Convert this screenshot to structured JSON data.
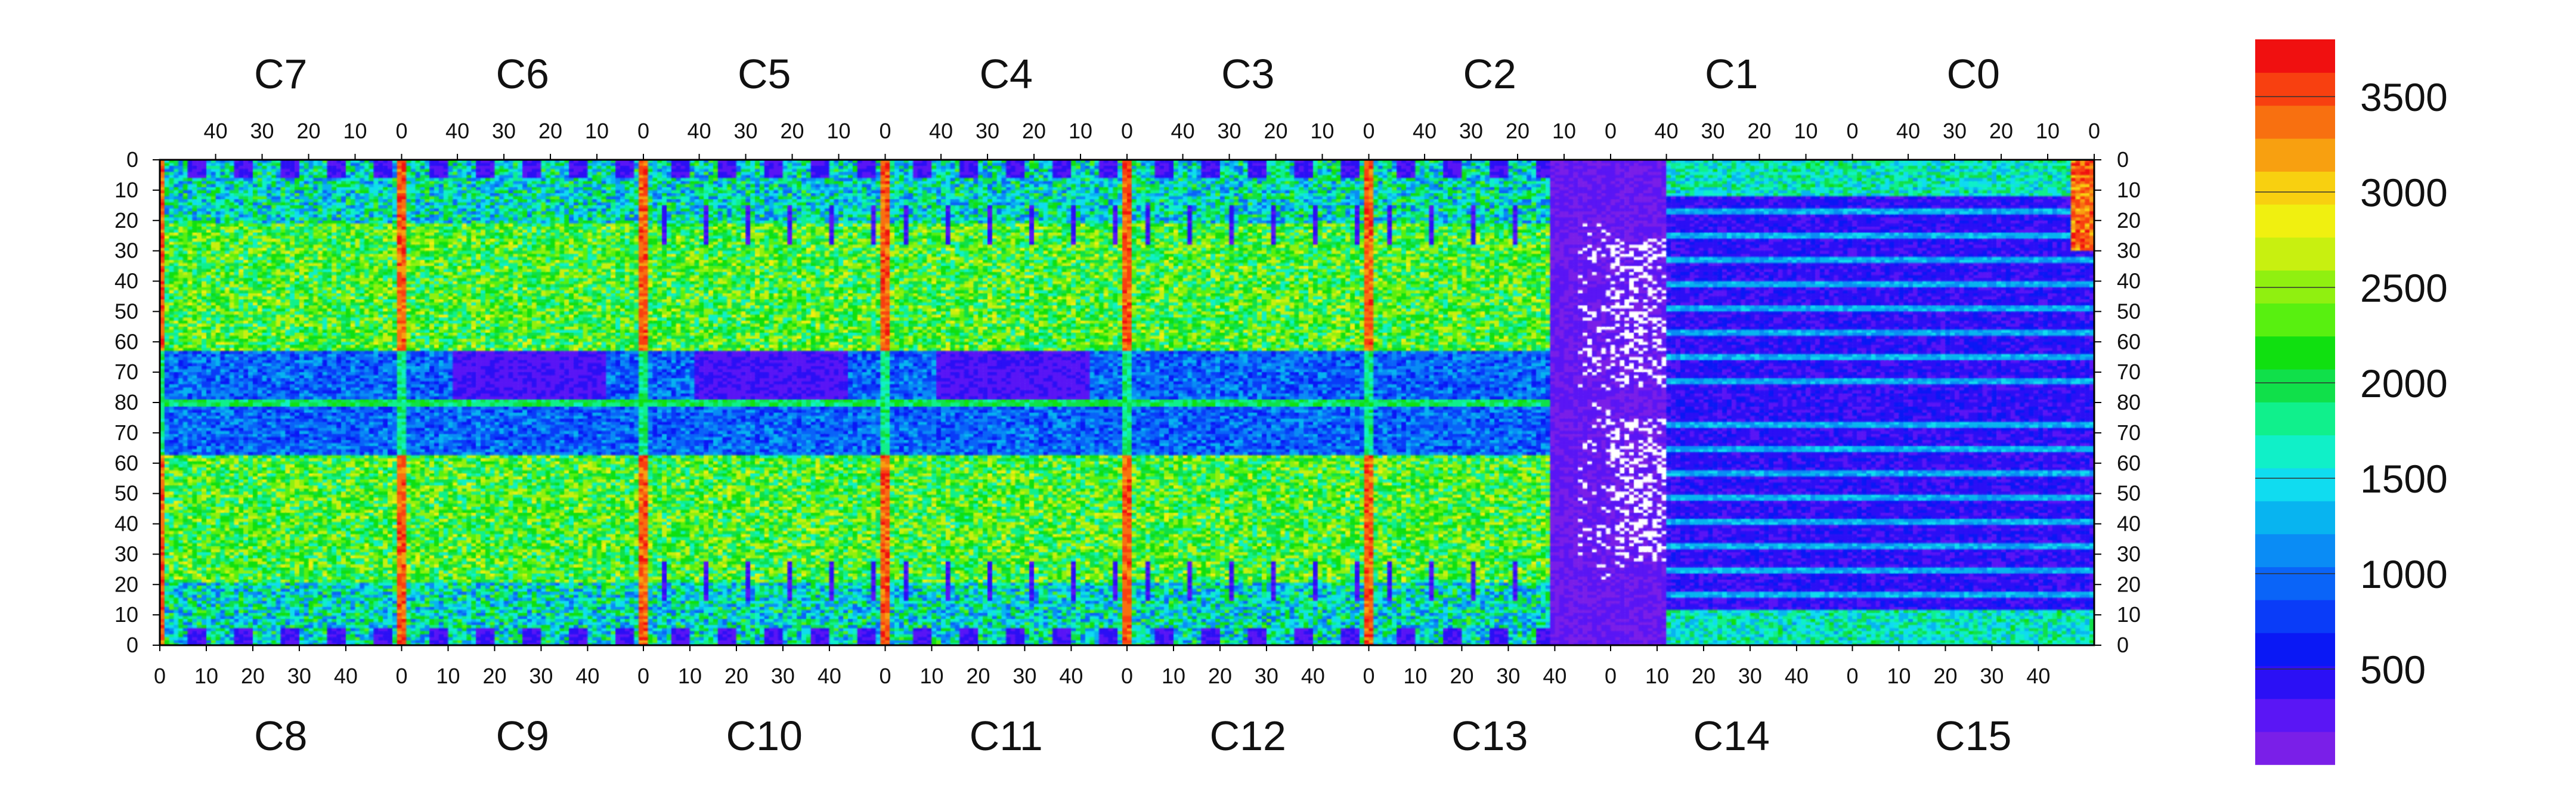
{
  "chart_data": {
    "type": "heatmap",
    "title": "",
    "xlabel": "",
    "ylabel": "",
    "top_chips": [
      "C7",
      "C6",
      "C5",
      "C4",
      "C3",
      "C2",
      "C1",
      "C0"
    ],
    "bottom_chips": [
      "C8",
      "C9",
      "C10",
      "C11",
      "C12",
      "C13",
      "C14",
      "C15"
    ],
    "top_x_ticks": [
      "40",
      "30",
      "20",
      "10",
      "0"
    ],
    "bottom_x_ticks": [
      "0",
      "10",
      "20",
      "30",
      "40"
    ],
    "y_ticks_top_half": [
      "0",
      "10",
      "20",
      "30",
      "40",
      "50",
      "60",
      "70",
      "80"
    ],
    "y_ticks_bottom_half": [
      "70",
      "60",
      "50",
      "40",
      "30",
      "20",
      "10",
      "0"
    ],
    "columns_per_chip": 52,
    "rows_per_half": 80,
    "colorbar": {
      "min": 0,
      "max": 3800,
      "ticks": [
        "500",
        "1000",
        "1500",
        "2000",
        "2500",
        "3000",
        "3500"
      ],
      "tick_values": [
        500,
        1000,
        1500,
        2000,
        2500,
        3000,
        3500
      ],
      "colors": [
        "#7a1fe8",
        "#5a16f5",
        "#2b10f5",
        "#0a18f5",
        "#0a3cf8",
        "#0a64f8",
        "#0a8cf5",
        "#08b4f0",
        "#10dcf0",
        "#10f0c8",
        "#10f08c",
        "#10e04a",
        "#10e010",
        "#58f010",
        "#90f010",
        "#c8f010",
        "#f0f010",
        "#f8d010",
        "#f8a010",
        "#f87010",
        "#f84010",
        "#f01010"
      ]
    },
    "series_summary": [
      {
        "region": "C7/C8",
        "typical_value": 1500
      },
      {
        "region": "C13/C14",
        "typical_value": 150,
        "note": "low-occupancy region with empty (white) cells"
      },
      {
        "region": "chip-edge columns",
        "typical_value": 3500
      }
    ]
  }
}
